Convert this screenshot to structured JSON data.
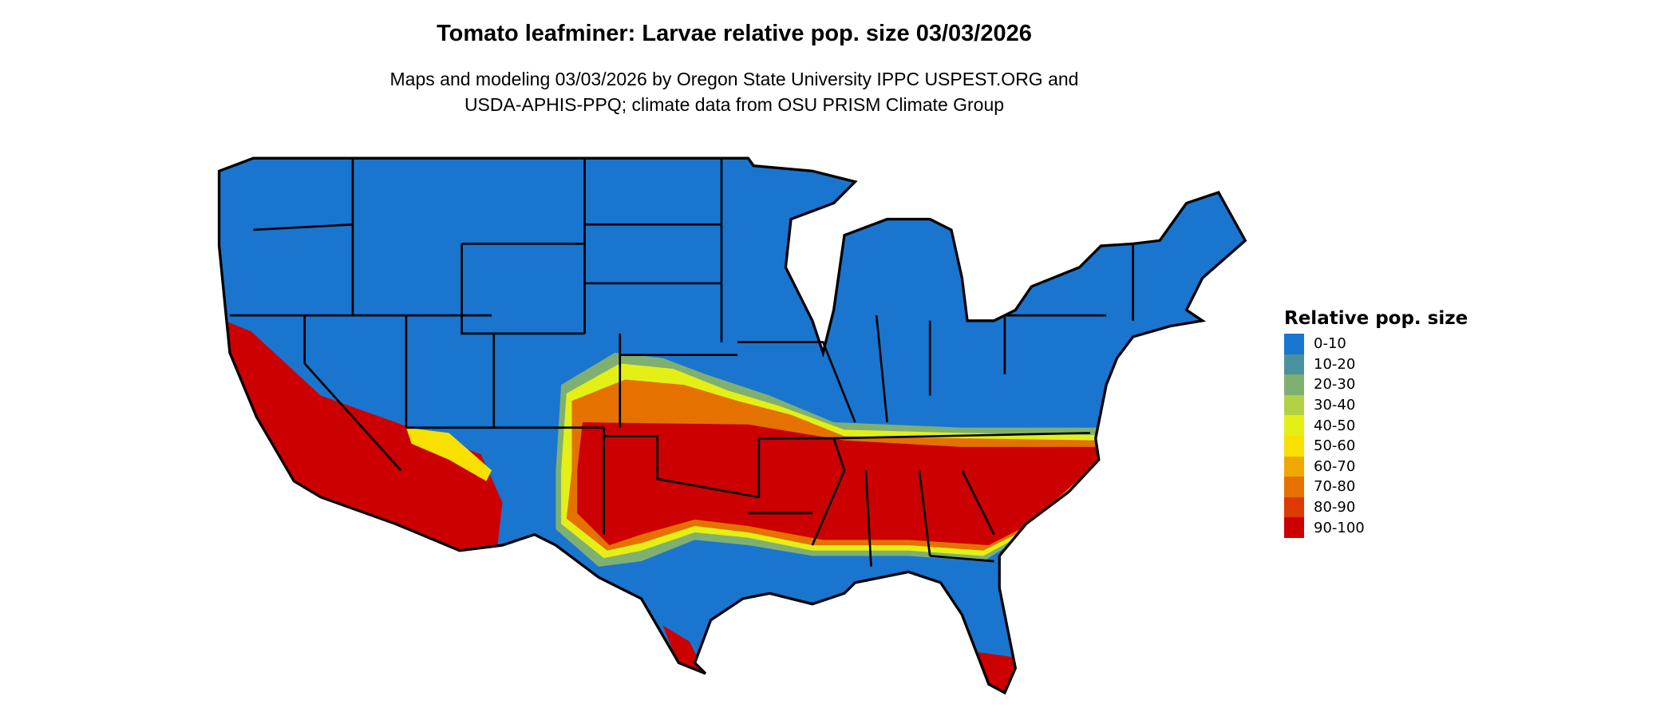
{
  "title": "Tomato leafminer: Larvae relative pop. size 03/03/2026",
  "subtitle_line1": "Maps and modeling 03/03/2026 by Oregon State University IPPC USPEST.ORG and",
  "subtitle_line2": "USDA-APHIS-PPQ; climate data from OSU PRISM Climate Group",
  "legend": {
    "title": "Relative pop. size",
    "items": [
      {
        "label": "0-10",
        "color": "#1A75CF"
      },
      {
        "label": "10-20",
        "color": "#4A919E"
      },
      {
        "label": "20-30",
        "color": "#7FB072"
      },
      {
        "label": "30-40",
        "color": "#B2D145"
      },
      {
        "label": "40-50",
        "color": "#E4F015"
      },
      {
        "label": "50-60",
        "color": "#F8E000"
      },
      {
        "label": "60-70",
        "color": "#EFA800"
      },
      {
        "label": "70-80",
        "color": "#E57200"
      },
      {
        "label": "80-90",
        "color": "#DC3A00"
      },
      {
        "label": "90-100",
        "color": "#CC0000"
      }
    ]
  },
  "map": {
    "region": "contiguous United States",
    "border_color": "#000000"
  }
}
